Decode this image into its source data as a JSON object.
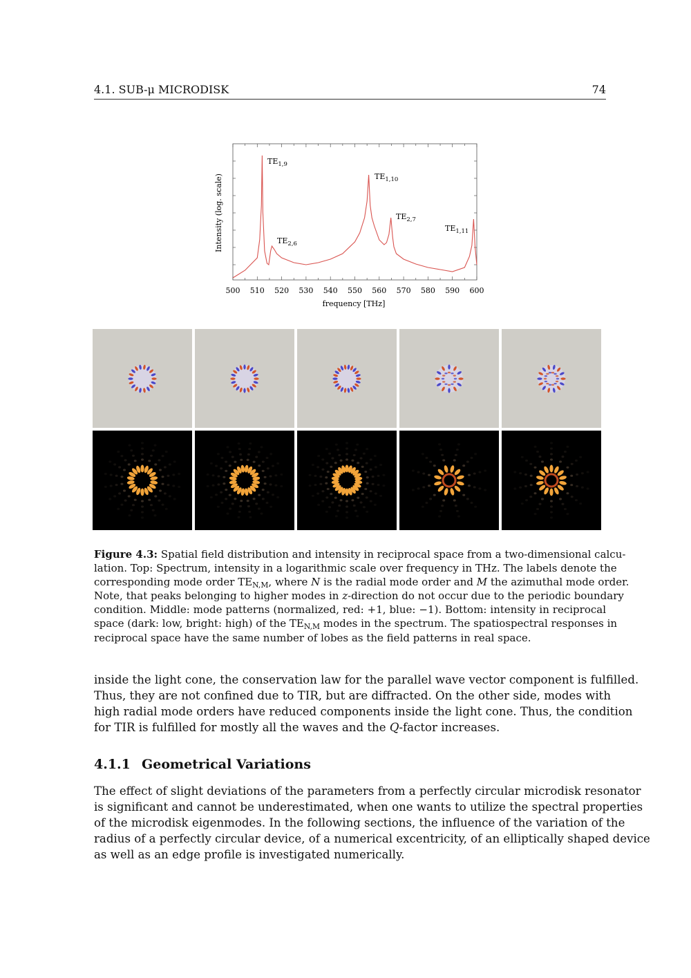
{
  "header": {
    "section": "4.1. SUB-μ MICRODISK",
    "page_number": "74"
  },
  "chart_data": {
    "type": "line",
    "xlabel": "frequency [THz]",
    "ylabel": "Intensity (log. scale)",
    "xlim": [
      500,
      600
    ],
    "x_ticks": [
      "500",
      "510",
      "520",
      "530",
      "540",
      "550",
      "560",
      "570",
      "580",
      "590",
      "600"
    ],
    "y_scale": "log",
    "y_tick_labels": false,
    "grid": false,
    "line_color": "#d9534f",
    "series": [
      {
        "x": [
          500,
          505,
          510,
          511,
          511.7,
          512,
          512.3,
          513,
          514,
          514.7,
          515.5,
          516,
          517,
          518,
          520,
          525,
          530,
          535,
          540,
          545,
          550,
          552,
          554,
          555,
          555.7,
          556.3,
          557,
          558,
          560,
          562,
          563,
          564,
          564.8,
          565.5,
          566,
          567,
          570,
          575,
          580,
          585,
          590,
          595,
          597,
          598,
          598.7,
          599.3,
          600
        ],
        "y": [
          0.25,
          0.8,
          1.7,
          3.0,
          5.5,
          9.1,
          5.0,
          2.2,
          1.3,
          1.2,
          2.2,
          2.55,
          2.3,
          2.0,
          1.7,
          1.35,
          1.2,
          1.35,
          1.6,
          2.0,
          2.85,
          3.5,
          4.6,
          5.8,
          7.7,
          5.5,
          4.6,
          4.0,
          3.0,
          2.65,
          2.8,
          3.4,
          4.6,
          3.2,
          2.5,
          2.0,
          1.6,
          1.25,
          1.0,
          0.85,
          0.7,
          1.0,
          1.8,
          2.6,
          4.5,
          2.5,
          1.2
        ]
      }
    ],
    "annotations": [
      {
        "label": "TE",
        "sub": "1,9",
        "x": 512
      },
      {
        "label": "TE",
        "sub": "2,6",
        "x": 516
      },
      {
        "label": "TE",
        "sub": "1,10",
        "x": 555.7
      },
      {
        "label": "TE",
        "sub": "2,7",
        "x": 564.8
      },
      {
        "label": "TE",
        "sub": "1,11",
        "x": 598.7
      }
    ]
  },
  "panels": {
    "field_colors": {
      "background": "#cfcdc7",
      "positive": "#d2552a",
      "negative": "#4a48c8"
    },
    "reciprocal_colors": {
      "background": "#000000",
      "bright": "#f2a43a"
    }
  },
  "caption": [
    [
      {
        "t": "Figure 4.3:",
        "f": "b"
      },
      " Spatial field distribution and intensity in reciprocal space from a two-dimensional calcu-"
    ],
    [
      "lation. Top: Spectrum, intensity in a logarithmic scale over frequency in THz. The labels denote the"
    ],
    [
      "corresponding mode order TE",
      {
        "t": "N,M",
        "f": "sub"
      },
      ", where ",
      {
        "t": "N",
        "f": "i"
      },
      " is the radial mode order and ",
      {
        "t": "M",
        "f": "i"
      },
      " the azimuthal mode order."
    ],
    [
      "Note, that peaks belonging to higher modes in ",
      {
        "t": "z",
        "f": "i"
      },
      "-direction do not occur due to the periodic boundary"
    ],
    [
      "condition. Middle: mode patterns (normalized, red: +1, blue: −1). Bottom: intensity in reciprocal"
    ],
    [
      "space (dark: low, bright: high) of the TE",
      {
        "t": "N,M",
        "f": "sub"
      },
      " modes in the spectrum. The spatiospectral responses in"
    ],
    [
      "reciprocal space have the same number of lobes as the field patterns in real space."
    ]
  ],
  "body1": [
    [
      "inside the light cone, the conservation law for the parallel wave vector component is fulfilled."
    ],
    [
      "Thus, they are not confined due to TIR, but are diffracted. On the other side, modes with"
    ],
    [
      "high radial mode orders have reduced components inside the light cone. Thus, the condition"
    ],
    [
      "for TIR is fulfilled for mostly all the waves and the ",
      {
        "t": "Q",
        "f": "i"
      },
      "-factor increases."
    ]
  ],
  "heading": {
    "number": "4.1.1",
    "title": "Geometrical Variations"
  },
  "body2": [
    [
      "The effect of slight deviations of the parameters from a perfectly circular microdisk resonator"
    ],
    [
      "is significant and cannot be underestimated, when one wants to utilize the spectral properties"
    ],
    [
      "of the microdisk eigenmodes. In the following sections, the influence of the variation of the"
    ],
    [
      "radius of a perfectly circular device, of a numerical excentricity, of an elliptically shaped device"
    ],
    [
      "as well as an edge profile is investigated numerically."
    ]
  ]
}
